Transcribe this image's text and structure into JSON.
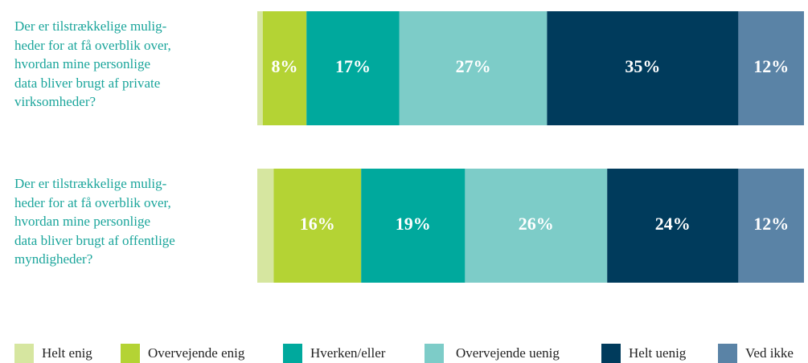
{
  "chart_data": {
    "type": "stacked-bar-horizontal",
    "categories": [
      "Der er tilstrækkelige mulig-\nheder for at få overblik over,\nhvordan mine personlige\ndata bliver brugt af private\nvirksomheder?",
      "Der er tilstrækkelige mulig-\nheder for at få overblik over,\nhvordan mine personlige\ndata bliver brugt af offentlige\nmyndigheder?"
    ],
    "xlim": [
      0,
      100
    ],
    "series": [
      {
        "name": "Helt enig",
        "color": "#d6e6a0",
        "values": [
          1,
          3
        ],
        "value_labels": [
          null,
          null
        ]
      },
      {
        "name": "Overvejende enig",
        "color": "#b4d334",
        "values": [
          8,
          16
        ],
        "value_labels": [
          "8%",
          "16%"
        ]
      },
      {
        "name": "Hverken/eller",
        "color": "#00a99d",
        "values": [
          17,
          19
        ],
        "value_labels": [
          "17%",
          "19%"
        ]
      },
      {
        "name": "Overvejende uenig",
        "color": "#7dccc8",
        "values": [
          27,
          26
        ],
        "value_labels": [
          "27%",
          "26%"
        ]
      },
      {
        "name": "Helt uenig",
        "color": "#003b5c",
        "values": [
          35,
          24
        ],
        "value_labels": [
          "35%",
          "24%"
        ]
      },
      {
        "name": "Ved ikke",
        "color": "#5a83a6",
        "values": [
          12,
          12
        ],
        "value_labels": [
          "12%",
          "12%"
        ]
      }
    ]
  }
}
